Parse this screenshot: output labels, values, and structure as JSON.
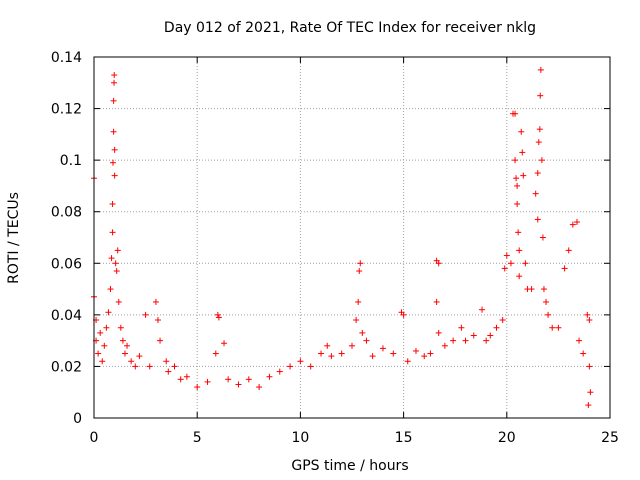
{
  "chart_data": {
    "type": "scatter",
    "title": "Day 012 of 2021, Rate Of TEC Index for receiver nklg",
    "xlabel": "GPS time / hours",
    "ylabel": "ROTI / TECUs",
    "xlim": [
      0,
      25
    ],
    "ylim": [
      0,
      0.14
    ],
    "xticks": [
      0,
      5,
      10,
      15,
      20,
      25
    ],
    "yticks": [
      0,
      0.02,
      0.04,
      0.06,
      0.08,
      0.1,
      0.12,
      0.14
    ],
    "xtick_labels": [
      "0",
      "5",
      "10",
      "15",
      "20",
      "25"
    ],
    "ytick_labels": [
      "0",
      "0.02",
      "0.04",
      "0.06",
      "0.08",
      "0.1",
      "0.12",
      "0.14"
    ],
    "grid": true,
    "marker": "+",
    "color": "#ff0000",
    "series": [
      {
        "points": [
          [
            0.0,
            0.093
          ],
          [
            0.0,
            0.047
          ],
          [
            0.1,
            0.038
          ],
          [
            0.1,
            0.03
          ],
          [
            0.2,
            0.025
          ],
          [
            0.3,
            0.033
          ],
          [
            0.4,
            0.022
          ],
          [
            0.5,
            0.028
          ],
          [
            0.6,
            0.035
          ],
          [
            0.7,
            0.041
          ],
          [
            0.8,
            0.05
          ],
          [
            0.85,
            0.062
          ],
          [
            0.9,
            0.072
          ],
          [
            0.9,
            0.083
          ],
          [
            0.92,
            0.099
          ],
          [
            0.95,
            0.111
          ],
          [
            0.95,
            0.123
          ],
          [
            0.97,
            0.13
          ],
          [
            0.98,
            0.133
          ],
          [
            1.0,
            0.104
          ],
          [
            1.0,
            0.094
          ],
          [
            1.05,
            0.06
          ],
          [
            1.1,
            0.057
          ],
          [
            1.15,
            0.065
          ],
          [
            1.2,
            0.045
          ],
          [
            1.3,
            0.035
          ],
          [
            1.4,
            0.03
          ],
          [
            1.5,
            0.025
          ],
          [
            1.6,
            0.028
          ],
          [
            1.8,
            0.022
          ],
          [
            2.0,
            0.02
          ],
          [
            2.2,
            0.024
          ],
          [
            2.5,
            0.04
          ],
          [
            2.7,
            0.02
          ],
          [
            3.0,
            0.045
          ],
          [
            3.1,
            0.038
          ],
          [
            3.2,
            0.03
          ],
          [
            3.5,
            0.022
          ],
          [
            3.6,
            0.018
          ],
          [
            3.9,
            0.02
          ],
          [
            4.2,
            0.015
          ],
          [
            4.5,
            0.016
          ],
          [
            5.0,
            0.012
          ],
          [
            5.5,
            0.014
          ],
          [
            5.9,
            0.025
          ],
          [
            6.0,
            0.04
          ],
          [
            6.05,
            0.039
          ],
          [
            6.3,
            0.029
          ],
          [
            6.5,
            0.015
          ],
          [
            7.0,
            0.013
          ],
          [
            7.5,
            0.015
          ],
          [
            8.0,
            0.012
          ],
          [
            8.5,
            0.016
          ],
          [
            9.0,
            0.018
          ],
          [
            9.5,
            0.02
          ],
          [
            10.0,
            0.022
          ],
          [
            10.5,
            0.02
          ],
          [
            11.0,
            0.025
          ],
          [
            11.3,
            0.028
          ],
          [
            11.5,
            0.024
          ],
          [
            12.0,
            0.025
          ],
          [
            12.5,
            0.028
          ],
          [
            12.7,
            0.038
          ],
          [
            12.8,
            0.045
          ],
          [
            12.85,
            0.057
          ],
          [
            12.9,
            0.06
          ],
          [
            13.0,
            0.033
          ],
          [
            13.2,
            0.03
          ],
          [
            13.5,
            0.024
          ],
          [
            14.0,
            0.027
          ],
          [
            14.5,
            0.025
          ],
          [
            14.9,
            0.041
          ],
          [
            15.0,
            0.04
          ],
          [
            15.2,
            0.022
          ],
          [
            15.6,
            0.026
          ],
          [
            16.0,
            0.024
          ],
          [
            16.3,
            0.025
          ],
          [
            16.6,
            0.061
          ],
          [
            16.7,
            0.06
          ],
          [
            16.6,
            0.045
          ],
          [
            16.7,
            0.033
          ],
          [
            17.0,
            0.028
          ],
          [
            17.4,
            0.03
          ],
          [
            17.8,
            0.035
          ],
          [
            18.0,
            0.03
          ],
          [
            18.4,
            0.032
          ],
          [
            18.8,
            0.042
          ],
          [
            19.0,
            0.03
          ],
          [
            19.2,
            0.032
          ],
          [
            19.5,
            0.035
          ],
          [
            19.8,
            0.038
          ],
          [
            19.9,
            0.058
          ],
          [
            20.0,
            0.063
          ],
          [
            20.2,
            0.06
          ],
          [
            20.3,
            0.118
          ],
          [
            20.4,
            0.118
          ],
          [
            20.4,
            0.1
          ],
          [
            20.45,
            0.093
          ],
          [
            20.5,
            0.09
          ],
          [
            20.5,
            0.083
          ],
          [
            20.55,
            0.072
          ],
          [
            20.6,
            0.065
          ],
          [
            20.6,
            0.055
          ],
          [
            20.7,
            0.111
          ],
          [
            20.75,
            0.103
          ],
          [
            20.8,
            0.094
          ],
          [
            20.9,
            0.06
          ],
          [
            21.0,
            0.05
          ],
          [
            21.2,
            0.05
          ],
          [
            21.4,
            0.087
          ],
          [
            21.5,
            0.095
          ],
          [
            21.5,
            0.077
          ],
          [
            21.55,
            0.107
          ],
          [
            21.6,
            0.112
          ],
          [
            21.62,
            0.125
          ],
          [
            21.65,
            0.135
          ],
          [
            21.7,
            0.1
          ],
          [
            21.75,
            0.07
          ],
          [
            21.8,
            0.05
          ],
          [
            21.9,
            0.045
          ],
          [
            22.0,
            0.04
          ],
          [
            22.2,
            0.035
          ],
          [
            22.5,
            0.035
          ],
          [
            22.8,
            0.058
          ],
          [
            23.0,
            0.065
          ],
          [
            23.2,
            0.075
          ],
          [
            23.4,
            0.076
          ],
          [
            23.5,
            0.03
          ],
          [
            23.7,
            0.025
          ],
          [
            23.9,
            0.04
          ],
          [
            24.0,
            0.038
          ],
          [
            24.0,
            0.02
          ],
          [
            24.05,
            0.01
          ],
          [
            23.95,
            0.005
          ]
        ]
      }
    ]
  }
}
